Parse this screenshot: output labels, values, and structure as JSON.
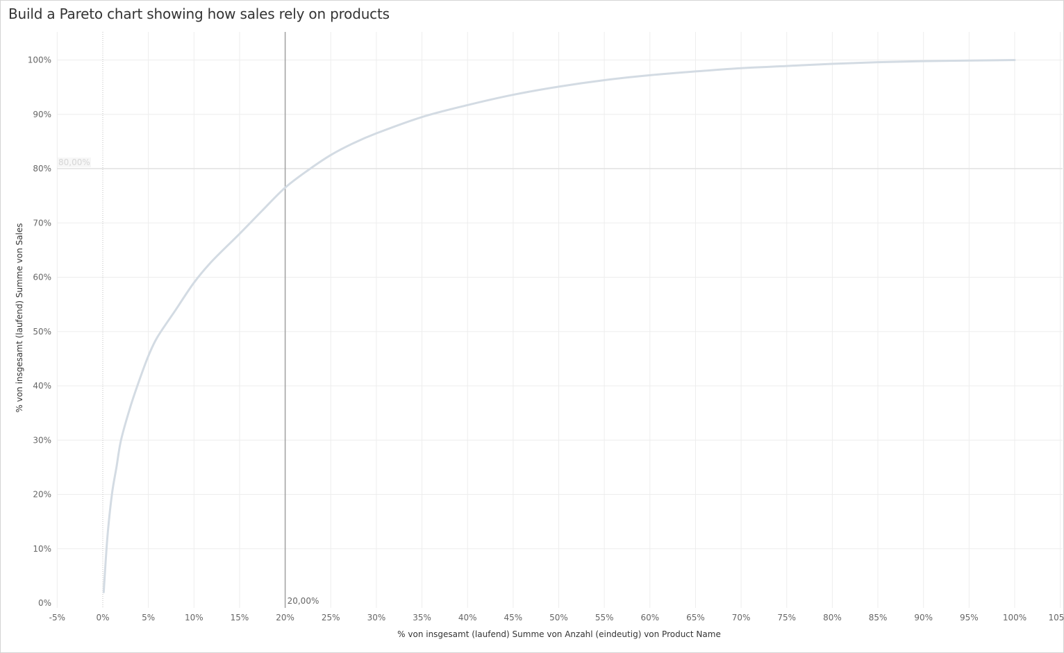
{
  "page": {
    "title": "Build a Pareto chart showing how sales rely on products"
  },
  "colors": {
    "curve": "#d3dbe3",
    "gridline": "#ededed",
    "vertical_ref_line": "#a0a0a0",
    "horizontal_ref_line": "#e1e1e1",
    "zero_line": "#bfbfbf",
    "text": "#666666"
  },
  "chart_data": {
    "type": "line",
    "title": "Build a Pareto chart showing how sales rely on products",
    "xlabel": "% von insgesamt (laufend) Summe von Anzahl (eindeutig) von Product Name",
    "ylabel": "% von insgesamt (laufend) Summe von Sales",
    "xlim": [
      -7,
      105
    ],
    "ylim": [
      0,
      102
    ],
    "x_ticks": [
      "-5%",
      "0%",
      "5%",
      "10%",
      "15%",
      "20%",
      "25%",
      "30%",
      "35%",
      "40%",
      "45%",
      "50%",
      "55%",
      "60%",
      "65%",
      "70%",
      "75%",
      "80%",
      "85%",
      "90%",
      "95%",
      "100%",
      "105%"
    ],
    "x_tick_values": [
      -5,
      0,
      5,
      10,
      15,
      20,
      25,
      30,
      35,
      40,
      45,
      50,
      55,
      60,
      65,
      70,
      75,
      80,
      85,
      90,
      95,
      100,
      105
    ],
    "y_ticks": [
      "0%",
      "10%",
      "20%",
      "30%",
      "40%",
      "50%",
      "60%",
      "70%",
      "80%",
      "90%",
      "100%"
    ],
    "y_tick_values": [
      0,
      10,
      20,
      30,
      40,
      50,
      60,
      70,
      80,
      90,
      100
    ],
    "grid": true,
    "series": [
      {
        "x": [
          0.1,
          0.5,
          1,
          1.5,
          2,
          3,
          4,
          5,
          6,
          8,
          10,
          12,
          15,
          17.5,
          20,
          22.5,
          25,
          27.5,
          30,
          35,
          40,
          45,
          50,
          55,
          60,
          65,
          70,
          75,
          80,
          85,
          90,
          95,
          100
        ],
        "y": [
          2,
          12,
          20,
          25,
          30,
          36,
          41,
          45.5,
          49,
          54,
          59,
          63,
          68,
          72.3,
          76.5,
          79.7,
          82.5,
          84.7,
          86.5,
          89.5,
          91.7,
          93.6,
          95.1,
          96.3,
          97.2,
          97.9,
          98.5,
          98.9,
          99.3,
          99.6,
          99.8,
          99.9,
          100
        ]
      }
    ],
    "reference_lines": {
      "vertical": {
        "value": 20,
        "label": "20,00%"
      },
      "horizontal": {
        "value": 80,
        "label": "80,00%"
      }
    }
  }
}
